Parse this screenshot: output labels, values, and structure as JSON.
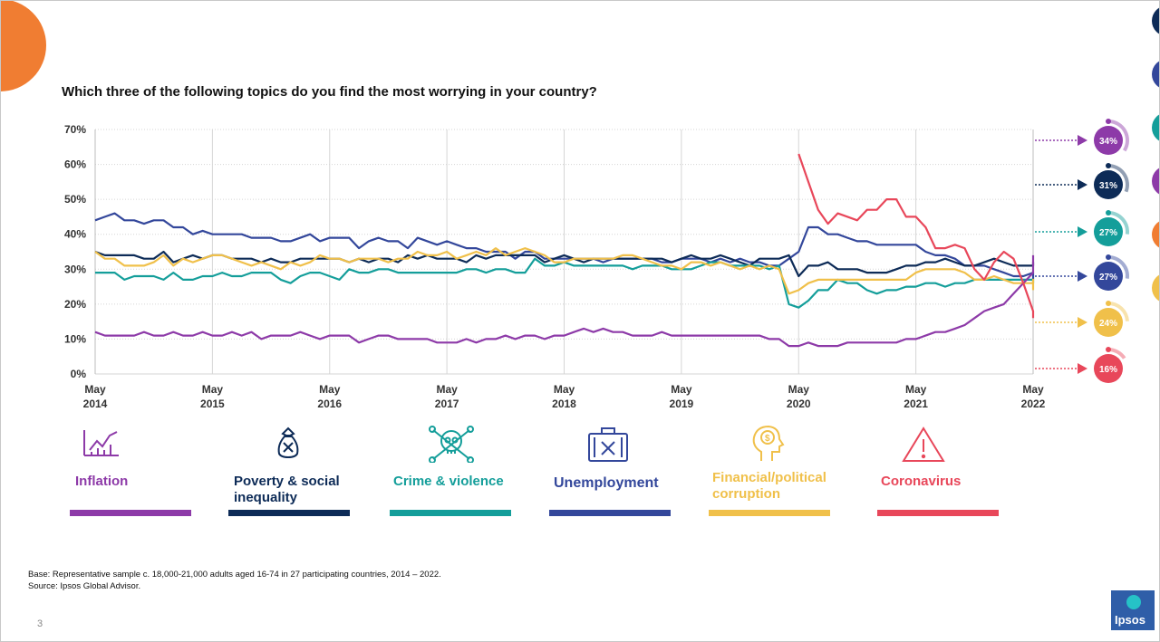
{
  "slide": {
    "title": "Which three of the following topics do you find the most worrying in your country?",
    "footnote_line1": "Base: Representative sample c. 18,000-21,000 adults aged 16-74 in 27 participating countries, 2014 – 2022.",
    "footnote_line2": "Source: Ipsos Global Advisor.",
    "page_number": "3",
    "logo_text": "Ipsos"
  },
  "colors": {
    "accent_orange": "#f07d32",
    "inflation": "#8d3aa8",
    "poverty": "#0d2b57",
    "crime": "#149e9a",
    "unemployment": "#33479b",
    "corruption": "#f0c04a",
    "coronavirus": "#e8475a",
    "grid": "#d5d5d5"
  },
  "legend": [
    {
      "key": "inflation",
      "label_line1": "Inflation",
      "label_line2": "",
      "icon": "rising-chart-icon"
    },
    {
      "key": "poverty",
      "label_line1": "Poverty & social",
      "label_line2": "inequality",
      "icon": "money-bag-icon"
    },
    {
      "key": "crime",
      "label_line1": "Crime & violence",
      "label_line2": "",
      "icon": "skull-crossbones-icon"
    },
    {
      "key": "unemployment",
      "label_line1": "Unemployment",
      "label_line2": "",
      "icon": "briefcase-icon"
    },
    {
      "key": "corruption",
      "label_line1": "Financial/political",
      "label_line2": "corruption",
      "icon": "head-dollar-icon"
    },
    {
      "key": "coronavirus",
      "label_line1": "Coronavirus",
      "label_line2": "",
      "icon": "warning-icon"
    }
  ],
  "chart_data": {
    "type": "line",
    "title": "Which three of the following topics do you find the most worrying in your country?",
    "xlabel": "",
    "ylabel": "",
    "ylim": [
      0,
      70
    ],
    "yticks": [
      "0%",
      "10%",
      "20%",
      "30%",
      "40%",
      "50%",
      "60%",
      "70%"
    ],
    "xrange_months": [
      "May 2014",
      "May 2022"
    ],
    "x_ticks": [
      {
        "line1": "May",
        "line2": "2014"
      },
      {
        "line1": "May",
        "line2": "2015"
      },
      {
        "line1": "May",
        "line2": "2016"
      },
      {
        "line1": "May",
        "line2": "2017"
      },
      {
        "line1": "May",
        "line2": "2018"
      },
      {
        "line1": "May",
        "line2": "2019"
      },
      {
        "line1": "May",
        "line2": "2020"
      },
      {
        "line1": "May",
        "line2": "2021"
      },
      {
        "line1": "May",
        "line2": "2022"
      }
    ],
    "grid": "vertical at each May, horizontal dotted",
    "series": [
      {
        "name": "Unemployment",
        "key": "unemployment",
        "end_label": "27%",
        "values": [
          44,
          45,
          46,
          44,
          44,
          43,
          44,
          44,
          42,
          42,
          40,
          41,
          40,
          40,
          40,
          40,
          39,
          39,
          39,
          38,
          38,
          39,
          40,
          38,
          39,
          39,
          39,
          36,
          38,
          39,
          38,
          38,
          36,
          39,
          38,
          37,
          38,
          37,
          36,
          36,
          35,
          35,
          35,
          33,
          35,
          35,
          33,
          33,
          33,
          33,
          33,
          33,
          32,
          33,
          33,
          33,
          33,
          33,
          32,
          32,
          33,
          33,
          33,
          32,
          33,
          32,
          33,
          32,
          32,
          31,
          31,
          33,
          35,
          42,
          42,
          40,
          40,
          39,
          38,
          38,
          37,
          37,
          37,
          37,
          37,
          35,
          34,
          34,
          33,
          31,
          31,
          31,
          30,
          29,
          28,
          28,
          29,
          29,
          28,
          28,
          27
        ]
      },
      {
        "name": "Poverty & social inequality",
        "key": "poverty",
        "end_label": "31%",
        "values": [
          35,
          34,
          34,
          34,
          34,
          33,
          33,
          35,
          32,
          33,
          34,
          33,
          34,
          34,
          33,
          33,
          33,
          32,
          33,
          32,
          32,
          33,
          33,
          33,
          33,
          33,
          32,
          33,
          32,
          33,
          33,
          32,
          34,
          33,
          34,
          33,
          33,
          33,
          32,
          34,
          33,
          34,
          34,
          34,
          34,
          34,
          32,
          33,
          34,
          33,
          32,
          33,
          33,
          33,
          33,
          33,
          33,
          33,
          33,
          32,
          33,
          34,
          33,
          33,
          34,
          33,
          32,
          31,
          33,
          33,
          33,
          34,
          28,
          31,
          31,
          32,
          30,
          30,
          30,
          29,
          29,
          29,
          30,
          31,
          31,
          32,
          32,
          33,
          32,
          31,
          31,
          32,
          33,
          32,
          31,
          31,
          31,
          31,
          32,
          31,
          31
        ]
      },
      {
        "name": "Crime & violence",
        "key": "crime",
        "end_label": "27%",
        "values": [
          29,
          29,
          29,
          27,
          28,
          28,
          28,
          27,
          29,
          27,
          27,
          28,
          28,
          29,
          28,
          28,
          29,
          29,
          29,
          27,
          26,
          28,
          29,
          29,
          28,
          27,
          30,
          29,
          29,
          30,
          30,
          29,
          29,
          29,
          29,
          29,
          29,
          29,
          30,
          30,
          29,
          30,
          30,
          29,
          29,
          33,
          31,
          31,
          32,
          31,
          31,
          31,
          31,
          31,
          31,
          30,
          31,
          31,
          31,
          30,
          30,
          30,
          31,
          32,
          32,
          31,
          31,
          31,
          31,
          30,
          31,
          20,
          19,
          21,
          24,
          24,
          27,
          26,
          26,
          24,
          23,
          24,
          24,
          25,
          25,
          26,
          26,
          25,
          26,
          26,
          27,
          27,
          27,
          27,
          27,
          27,
          27,
          27,
          26,
          26,
          27
        ]
      },
      {
        "name": "Financial/political corruption",
        "key": "corruption",
        "end_label": "24%",
        "values": [
          35,
          33,
          33,
          31,
          31,
          31,
          32,
          34,
          31,
          33,
          32,
          33,
          34,
          34,
          33,
          32,
          31,
          32,
          31,
          30,
          32,
          31,
          32,
          34,
          33,
          33,
          32,
          33,
          33,
          33,
          32,
          33,
          33,
          35,
          34,
          34,
          35,
          33,
          34,
          35,
          34,
          36,
          34,
          35,
          36,
          35,
          34,
          32,
          32,
          33,
          33,
          33,
          33,
          33,
          34,
          34,
          33,
          32,
          31,
          31,
          30,
          32,
          32,
          31,
          32,
          31,
          30,
          31,
          30,
          31,
          30,
          23,
          24,
          26,
          27,
          27,
          27,
          27,
          27,
          27,
          27,
          27,
          27,
          27,
          29,
          30,
          30,
          30,
          30,
          29,
          27,
          27,
          28,
          27,
          26,
          26,
          26,
          27,
          26,
          24,
          24
        ]
      },
      {
        "name": "Inflation",
        "key": "inflation",
        "end_label": "34%",
        "values": [
          12,
          11,
          11,
          11,
          11,
          12,
          11,
          11,
          12,
          11,
          11,
          12,
          11,
          11,
          12,
          11,
          12,
          10,
          11,
          11,
          11,
          12,
          11,
          10,
          11,
          11,
          11,
          9,
          10,
          11,
          11,
          10,
          10,
          10,
          10,
          9,
          9,
          9,
          10,
          9,
          10,
          10,
          11,
          10,
          11,
          11,
          10,
          11,
          11,
          12,
          13,
          12,
          13,
          12,
          12,
          11,
          11,
          11,
          12,
          11,
          11,
          11,
          11,
          11,
          11,
          11,
          11,
          11,
          11,
          10,
          10,
          8,
          8,
          9,
          8,
          8,
          8,
          9,
          9,
          9,
          9,
          9,
          9,
          10,
          10,
          11,
          12,
          12,
          13,
          14,
          16,
          18,
          19,
          20,
          23,
          26,
          29,
          32,
          34,
          34,
          34
        ]
      },
      {
        "name": "Coronavirus",
        "key": "coronavirus",
        "end_label": "16%",
        "start_index": 72,
        "values": [
          63,
          55,
          47,
          43,
          46,
          45,
          44,
          47,
          47,
          50,
          50,
          45,
          45,
          42,
          36,
          36,
          37,
          36,
          30,
          27,
          32,
          35,
          33,
          26,
          18,
          16
        ]
      }
    ]
  }
}
